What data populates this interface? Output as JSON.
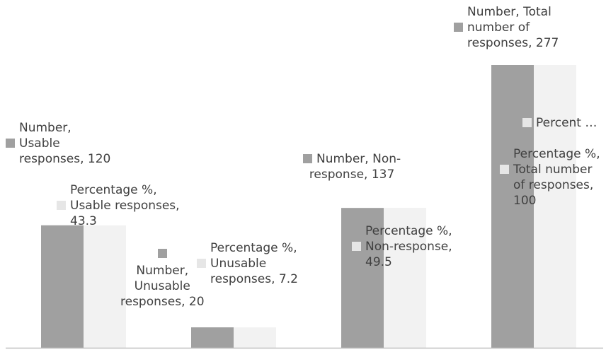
{
  "chart_data": {
    "type": "bar",
    "categories": [
      "Usable responses",
      "Unusable responses",
      "Non-response",
      "Total number of responses"
    ],
    "series": [
      {
        "name": "Number",
        "values": [
          120,
          20,
          137,
          277
        ],
        "color": "#a0a0a0"
      },
      {
        "name": "Percentage %",
        "values": [
          43.3,
          7.2,
          49.5,
          100
        ],
        "color": "#f2f2f2"
      }
    ],
    "legend": "none",
    "grid": false,
    "data_labels": [
      {
        "series": 0,
        "index": 0,
        "text": "Number,\nUsable\nresponses, 120",
        "align": "left"
      },
      {
        "series": 1,
        "index": 0,
        "text": "Percentage %,\nUsable responses,\n43.3",
        "align": "left"
      },
      {
        "series": 0,
        "index": 1,
        "text": "Number,\nUnusable\nresponses, 20",
        "align": "center"
      },
      {
        "series": 1,
        "index": 1,
        "text": "Percentage %,\nUnusable\nresponses, 7.2",
        "align": "left"
      },
      {
        "series": 0,
        "index": 2,
        "text": "Number, Non-\nresponse, 137",
        "align": "center"
      },
      {
        "series": 1,
        "index": 2,
        "text": "Percentage %,\nNon-response,\n49.5",
        "align": "left"
      },
      {
        "series": 0,
        "index": 3,
        "text": "Number, Total\nnumber of\nresponses, 277",
        "align": "left"
      },
      {
        "series": 1,
        "index": 3,
        "text": "Percentage %,\nTotal number\nof responses,\n100",
        "align": "left"
      },
      {
        "series": 0,
        "index": 3,
        "text": "",
        "align": "left"
      },
      {
        "series": 1,
        "index": 3,
        "text": "Percent …",
        "align": "left"
      }
    ]
  }
}
